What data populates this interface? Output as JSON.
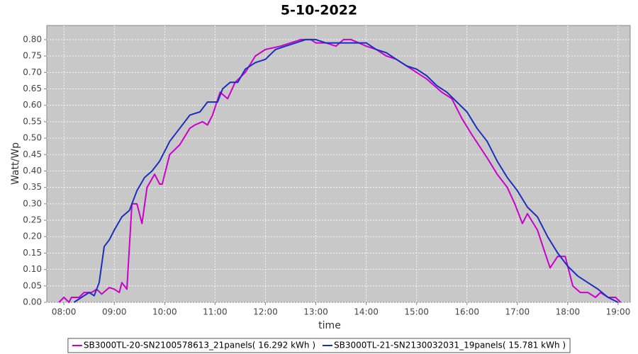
{
  "chart_data": {
    "type": "line",
    "title": "5-10-2022",
    "x_label": "time",
    "y_label": "Watt/Wp",
    "xlim": [
      7.66,
      19.24
    ],
    "ylim": [
      0,
      0.843
    ],
    "grid": true,
    "legend": "bottom",
    "xticks": [
      {
        "value": 8,
        "label": "08:00"
      },
      {
        "value": 9,
        "label": "09:00"
      },
      {
        "value": 10,
        "label": "10:00"
      },
      {
        "value": 11,
        "label": "11:00"
      },
      {
        "value": 12,
        "label": "12:00"
      },
      {
        "value": 13,
        "label": "13:00"
      },
      {
        "value": 14,
        "label": "14:00"
      },
      {
        "value": 15,
        "label": "15:00"
      },
      {
        "value": 16,
        "label": "16:00"
      },
      {
        "value": 17,
        "label": "17:00"
      },
      {
        "value": 18,
        "label": "18:00"
      },
      {
        "value": 19,
        "label": "19:00"
      }
    ],
    "yticks": [
      {
        "value": 0,
        "label": "0.00"
      },
      {
        "value": 0.05,
        "label": "0.05"
      },
      {
        "value": 0.1,
        "label": "0.10"
      },
      {
        "value": 0.15,
        "label": "0.15"
      },
      {
        "value": 0.2,
        "label": "0.20"
      },
      {
        "value": 0.25,
        "label": "0.25"
      },
      {
        "value": 0.3,
        "label": "0.30"
      },
      {
        "value": 0.35,
        "label": "0.35"
      },
      {
        "value": 0.4,
        "label": "0.40"
      },
      {
        "value": 0.45,
        "label": "0.45"
      },
      {
        "value": 0.5,
        "label": "0.50"
      },
      {
        "value": 0.55,
        "label": "0.55"
      },
      {
        "value": 0.6,
        "label": "0.60"
      },
      {
        "value": 0.65,
        "label": "0.65"
      },
      {
        "value": 0.7,
        "label": "0.70"
      },
      {
        "value": 0.75,
        "label": "0.75"
      },
      {
        "value": 0.8,
        "label": "0.80"
      }
    ],
    "series": [
      {
        "name": "SB3000TL-20-SN2100578613_21panels( 16.292 kWh )",
        "color": "#cc00cc",
        "x": [
          7.9,
          8.0,
          8.1,
          8.15,
          8.3,
          8.4,
          8.55,
          8.65,
          8.75,
          8.9,
          9.0,
          9.1,
          9.15,
          9.25,
          9.35,
          9.45,
          9.55,
          9.65,
          9.8,
          9.9,
          9.95,
          10.1,
          10.3,
          10.5,
          10.6,
          10.75,
          10.85,
          10.95,
          11.1,
          11.25,
          11.4,
          11.6,
          11.8,
          12.0,
          12.3,
          12.5,
          12.7,
          12.9,
          13.0,
          13.2,
          13.4,
          13.55,
          13.7,
          14.0,
          14.2,
          14.4,
          14.6,
          14.8,
          15.0,
          15.2,
          15.5,
          15.7,
          15.9,
          16.1,
          16.4,
          16.6,
          16.8,
          16.95,
          17.1,
          17.2,
          17.4,
          17.55,
          17.65,
          17.8,
          17.95,
          18.1,
          18.25,
          18.4,
          18.55,
          18.65,
          18.8,
          18.95,
          19.05
        ],
        "values": [
          0,
          0.015,
          0,
          0.015,
          0.015,
          0.03,
          0.03,
          0.04,
          0.025,
          0.045,
          0.04,
          0.03,
          0.06,
          0.04,
          0.3,
          0.3,
          0.24,
          0.35,
          0.39,
          0.36,
          0.36,
          0.45,
          0.48,
          0.53,
          0.54,
          0.55,
          0.54,
          0.57,
          0.64,
          0.62,
          0.67,
          0.7,
          0.75,
          0.77,
          0.78,
          0.79,
          0.8,
          0.8,
          0.79,
          0.79,
          0.78,
          0.8,
          0.8,
          0.78,
          0.77,
          0.75,
          0.74,
          0.72,
          0.7,
          0.68,
          0.64,
          0.62,
          0.56,
          0.51,
          0.44,
          0.39,
          0.35,
          0.3,
          0.24,
          0.27,
          0.22,
          0.15,
          0.105,
          0.14,
          0.14,
          0.05,
          0.03,
          0.03,
          0.015,
          0.03,
          0.015,
          0.015,
          0
        ]
      },
      {
        "name": "SB3000TL-21-SN2130032031_19panels( 15.781 kWh )",
        "color": "#1a2fbf",
        "x": [
          8.2,
          8.35,
          8.5,
          8.6,
          8.7,
          8.8,
          8.9,
          9.0,
          9.15,
          9.3,
          9.45,
          9.6,
          9.75,
          9.9,
          10.1,
          10.3,
          10.5,
          10.7,
          10.85,
          11.05,
          11.15,
          11.3,
          11.45,
          11.6,
          11.8,
          12.0,
          12.2,
          12.4,
          12.6,
          12.8,
          13.0,
          13.2,
          13.4,
          13.6,
          13.8,
          14.0,
          14.2,
          14.4,
          14.6,
          14.8,
          15.0,
          15.2,
          15.4,
          15.6,
          15.8,
          16.0,
          16.2,
          16.4,
          16.6,
          16.8,
          17.0,
          17.2,
          17.4,
          17.6,
          17.8,
          18.0,
          18.2,
          18.4,
          18.6,
          18.8,
          19.0
        ],
        "values": [
          0,
          0.015,
          0.03,
          0.02,
          0.06,
          0.17,
          0.19,
          0.22,
          0.26,
          0.28,
          0.34,
          0.38,
          0.4,
          0.43,
          0.49,
          0.53,
          0.57,
          0.58,
          0.61,
          0.61,
          0.65,
          0.67,
          0.67,
          0.71,
          0.73,
          0.74,
          0.77,
          0.78,
          0.79,
          0.8,
          0.8,
          0.79,
          0.79,
          0.79,
          0.79,
          0.79,
          0.77,
          0.76,
          0.74,
          0.72,
          0.71,
          0.69,
          0.66,
          0.64,
          0.61,
          0.58,
          0.53,
          0.49,
          0.43,
          0.38,
          0.34,
          0.29,
          0.26,
          0.2,
          0.15,
          0.11,
          0.08,
          0.06,
          0.04,
          0.015,
          0
        ]
      }
    ]
  }
}
